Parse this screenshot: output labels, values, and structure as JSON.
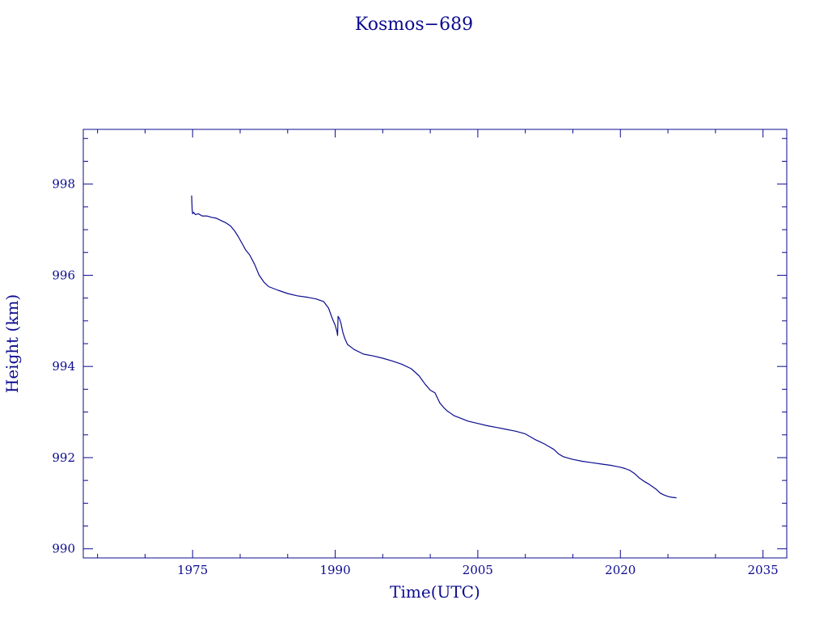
{
  "chart_data": {
    "type": "line",
    "title": "Kosmos−689",
    "xlabel": "Time(UTC)",
    "ylabel": "Height (km)",
    "xlim": [
      1963.5,
      2037.5
    ],
    "ylim": [
      989.8,
      999.2
    ],
    "x_ticks": [
      1975,
      1990,
      2005,
      2020,
      2035
    ],
    "y_ticks": [
      990,
      992,
      994,
      996,
      998
    ],
    "grid": false,
    "color": "#0b0b8f",
    "series": [
      {
        "x": [
          1974.9,
          1974.95,
          1975.0,
          1975.1,
          1975.3,
          1975.6,
          1976.0,
          1976.5,
          1977.0,
          1977.5,
          1978.0,
          1978.5,
          1979.0,
          1979.4,
          1979.8,
          1980.2,
          1980.6,
          1981.0,
          1981.5,
          1982.0,
          1982.5,
          1983.0,
          1984.0,
          1985.0,
          1986.0,
          1987.0,
          1988.0,
          1988.8,
          1989.3,
          1989.7,
          1990.0,
          1990.2,
          1990.25,
          1990.3,
          1990.45,
          1990.6,
          1990.8,
          1991.0,
          1991.3,
          1991.5,
          1992.0,
          1993.0,
          1994.0,
          1995.0,
          1996.0,
          1997.0,
          1998.0,
          1998.8,
          1999.5,
          2000.0,
          2000.5,
          2001.0,
          2001.5,
          2001.8,
          2002.1,
          2002.5,
          2003.0,
          2004.0,
          2005.0,
          2006.0,
          2007.0,
          2008.0,
          2009.0,
          2010.0,
          2010.5,
          2011.0,
          2011.5,
          2012.0,
          2012.5,
          2013.0,
          2013.5,
          2014.0,
          2015.0,
          2016.0,
          2017.0,
          2018.0,
          2019.0,
          2019.5,
          2020.0,
          2020.5,
          2021.0,
          2021.5,
          2022.0,
          2022.5,
          2023.0,
          2023.4,
          2023.8,
          2024.2,
          2024.6,
          2025.0,
          2025.4,
          2025.9
        ],
        "y": [
          997.75,
          997.45,
          997.35,
          997.38,
          997.33,
          997.35,
          997.3,
          997.3,
          997.27,
          997.25,
          997.2,
          997.15,
          997.08,
          996.98,
          996.85,
          996.7,
          996.55,
          996.45,
          996.25,
          996.0,
          995.85,
          995.75,
          995.67,
          995.6,
          995.55,
          995.52,
          995.48,
          995.42,
          995.28,
          995.05,
          994.9,
          994.75,
          994.68,
          995.1,
          995.05,
          994.95,
          994.75,
          994.62,
          994.48,
          994.45,
          994.37,
          994.27,
          994.23,
          994.18,
          994.12,
          994.05,
          993.95,
          993.8,
          993.6,
          993.48,
          993.42,
          993.2,
          993.08,
          993.02,
          992.98,
          992.92,
          992.88,
          992.8,
          992.75,
          992.7,
          992.66,
          992.62,
          992.58,
          992.52,
          992.46,
          992.4,
          992.35,
          992.3,
          992.24,
          992.18,
          992.08,
          992.02,
          991.96,
          991.92,
          991.89,
          991.86,
          991.83,
          991.81,
          991.79,
          991.76,
          991.72,
          991.65,
          991.55,
          991.48,
          991.42,
          991.36,
          991.3,
          991.22,
          991.18,
          991.15,
          991.13,
          991.12
        ]
      }
    ]
  }
}
